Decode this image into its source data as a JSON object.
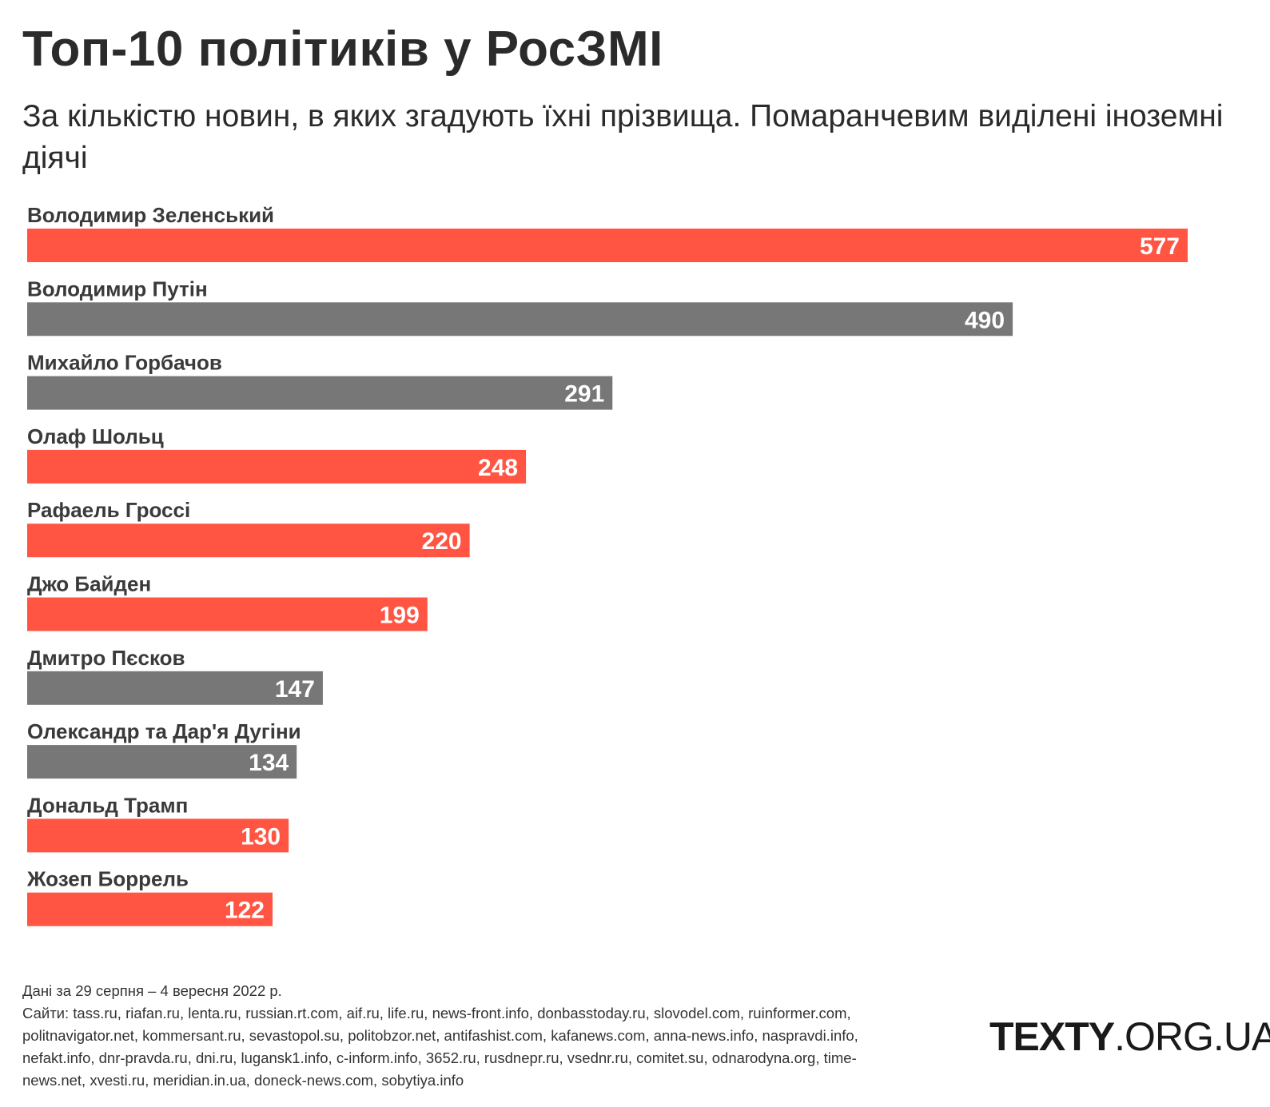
{
  "title": "Топ-10 політиків у РосЗМІ",
  "subtitle": "За кількістю новин, в яких згадують їхні прізвища. Помаранчевим виділені іноземні діячі",
  "colors": {
    "foreign": "#ff5542",
    "domestic": "#777777"
  },
  "chart_data": {
    "type": "bar",
    "orientation": "horizontal",
    "categories": [
      "Володимир Зеленський",
      "Володимир Путін",
      "Михайло Горбачов",
      "Олаф Шольц",
      "Рафаель Гроссі",
      "Джо Байден",
      "Дмитро Пєсков",
      "Олександр та Дар'я Дугіни",
      "Дональд Трамп",
      "Жозеп Боррель"
    ],
    "values": [
      577,
      490,
      291,
      248,
      220,
      199,
      147,
      134,
      130,
      122
    ],
    "foreign": [
      true,
      false,
      false,
      true,
      true,
      true,
      false,
      false,
      true,
      true
    ],
    "xlim": [
      0,
      577
    ],
    "grid": false,
    "legend": "none"
  },
  "footer": {
    "dates": "Дані за 29 серпня – 4 вересня 2022 р.",
    "sites_lines": [
      "Сайти: tass.ru, riafan.ru, lenta.ru, russian.rt.com, aif.ru, life.ru, news-front.info, donbasstoday.ru, slovodel.com, ruinformer.com,",
      "politnavigator.net, kommersant.ru, sevastopol.su, politobzor.net, antifashist.com, kafanews.com, anna-news.info, naspravdi.info,",
      "nefakt.info, dnr-pravda.ru, dni.ru, lugansk1.info, c-inform.info, 3652.ru, rusdnepr.ru, vsednr.ru, comitet.su, odnarodyna.org, time-",
      "news.net, xvesti.ru, meridian.in.ua, doneck-news.com, sobytiya.info"
    ]
  },
  "logo": {
    "bold": "TEXTY",
    "rest": ".ORG.UA"
  }
}
